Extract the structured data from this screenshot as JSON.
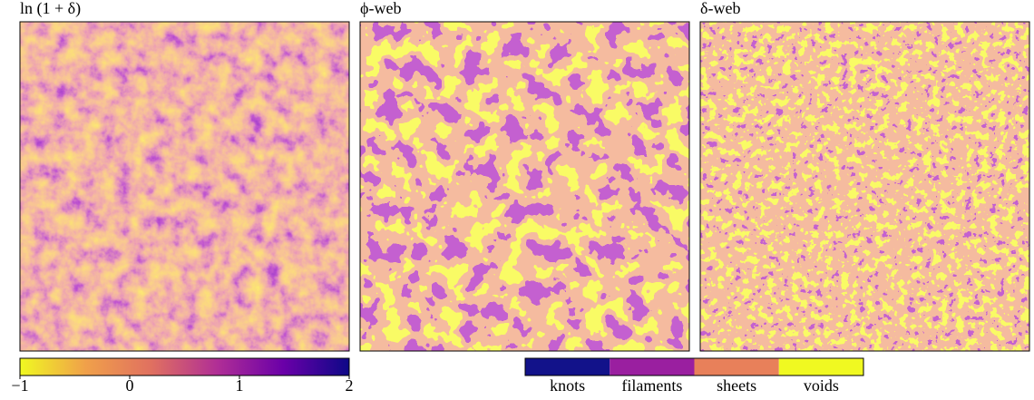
{
  "panels": [
    {
      "title": "ln (1 + δ)"
    },
    {
      "title": "ϕ-web"
    },
    {
      "title": "δ-web"
    }
  ],
  "colorbar": {
    "lim": [
      -1,
      2
    ],
    "ticks": [
      -1,
      0,
      1,
      2
    ],
    "colors": [
      "#f0f921",
      "#f0a04a",
      "#e07060",
      "#b02e96",
      "#6a00a8",
      "#0d0887"
    ]
  },
  "classes": [
    {
      "name": "knots",
      "color": "#12128a"
    },
    {
      "name": "filaments",
      "color": "#9a1fa0"
    },
    {
      "name": "sheets",
      "color": "#e8805a"
    },
    {
      "name": "voids",
      "color": "#f0f921"
    }
  ]
}
